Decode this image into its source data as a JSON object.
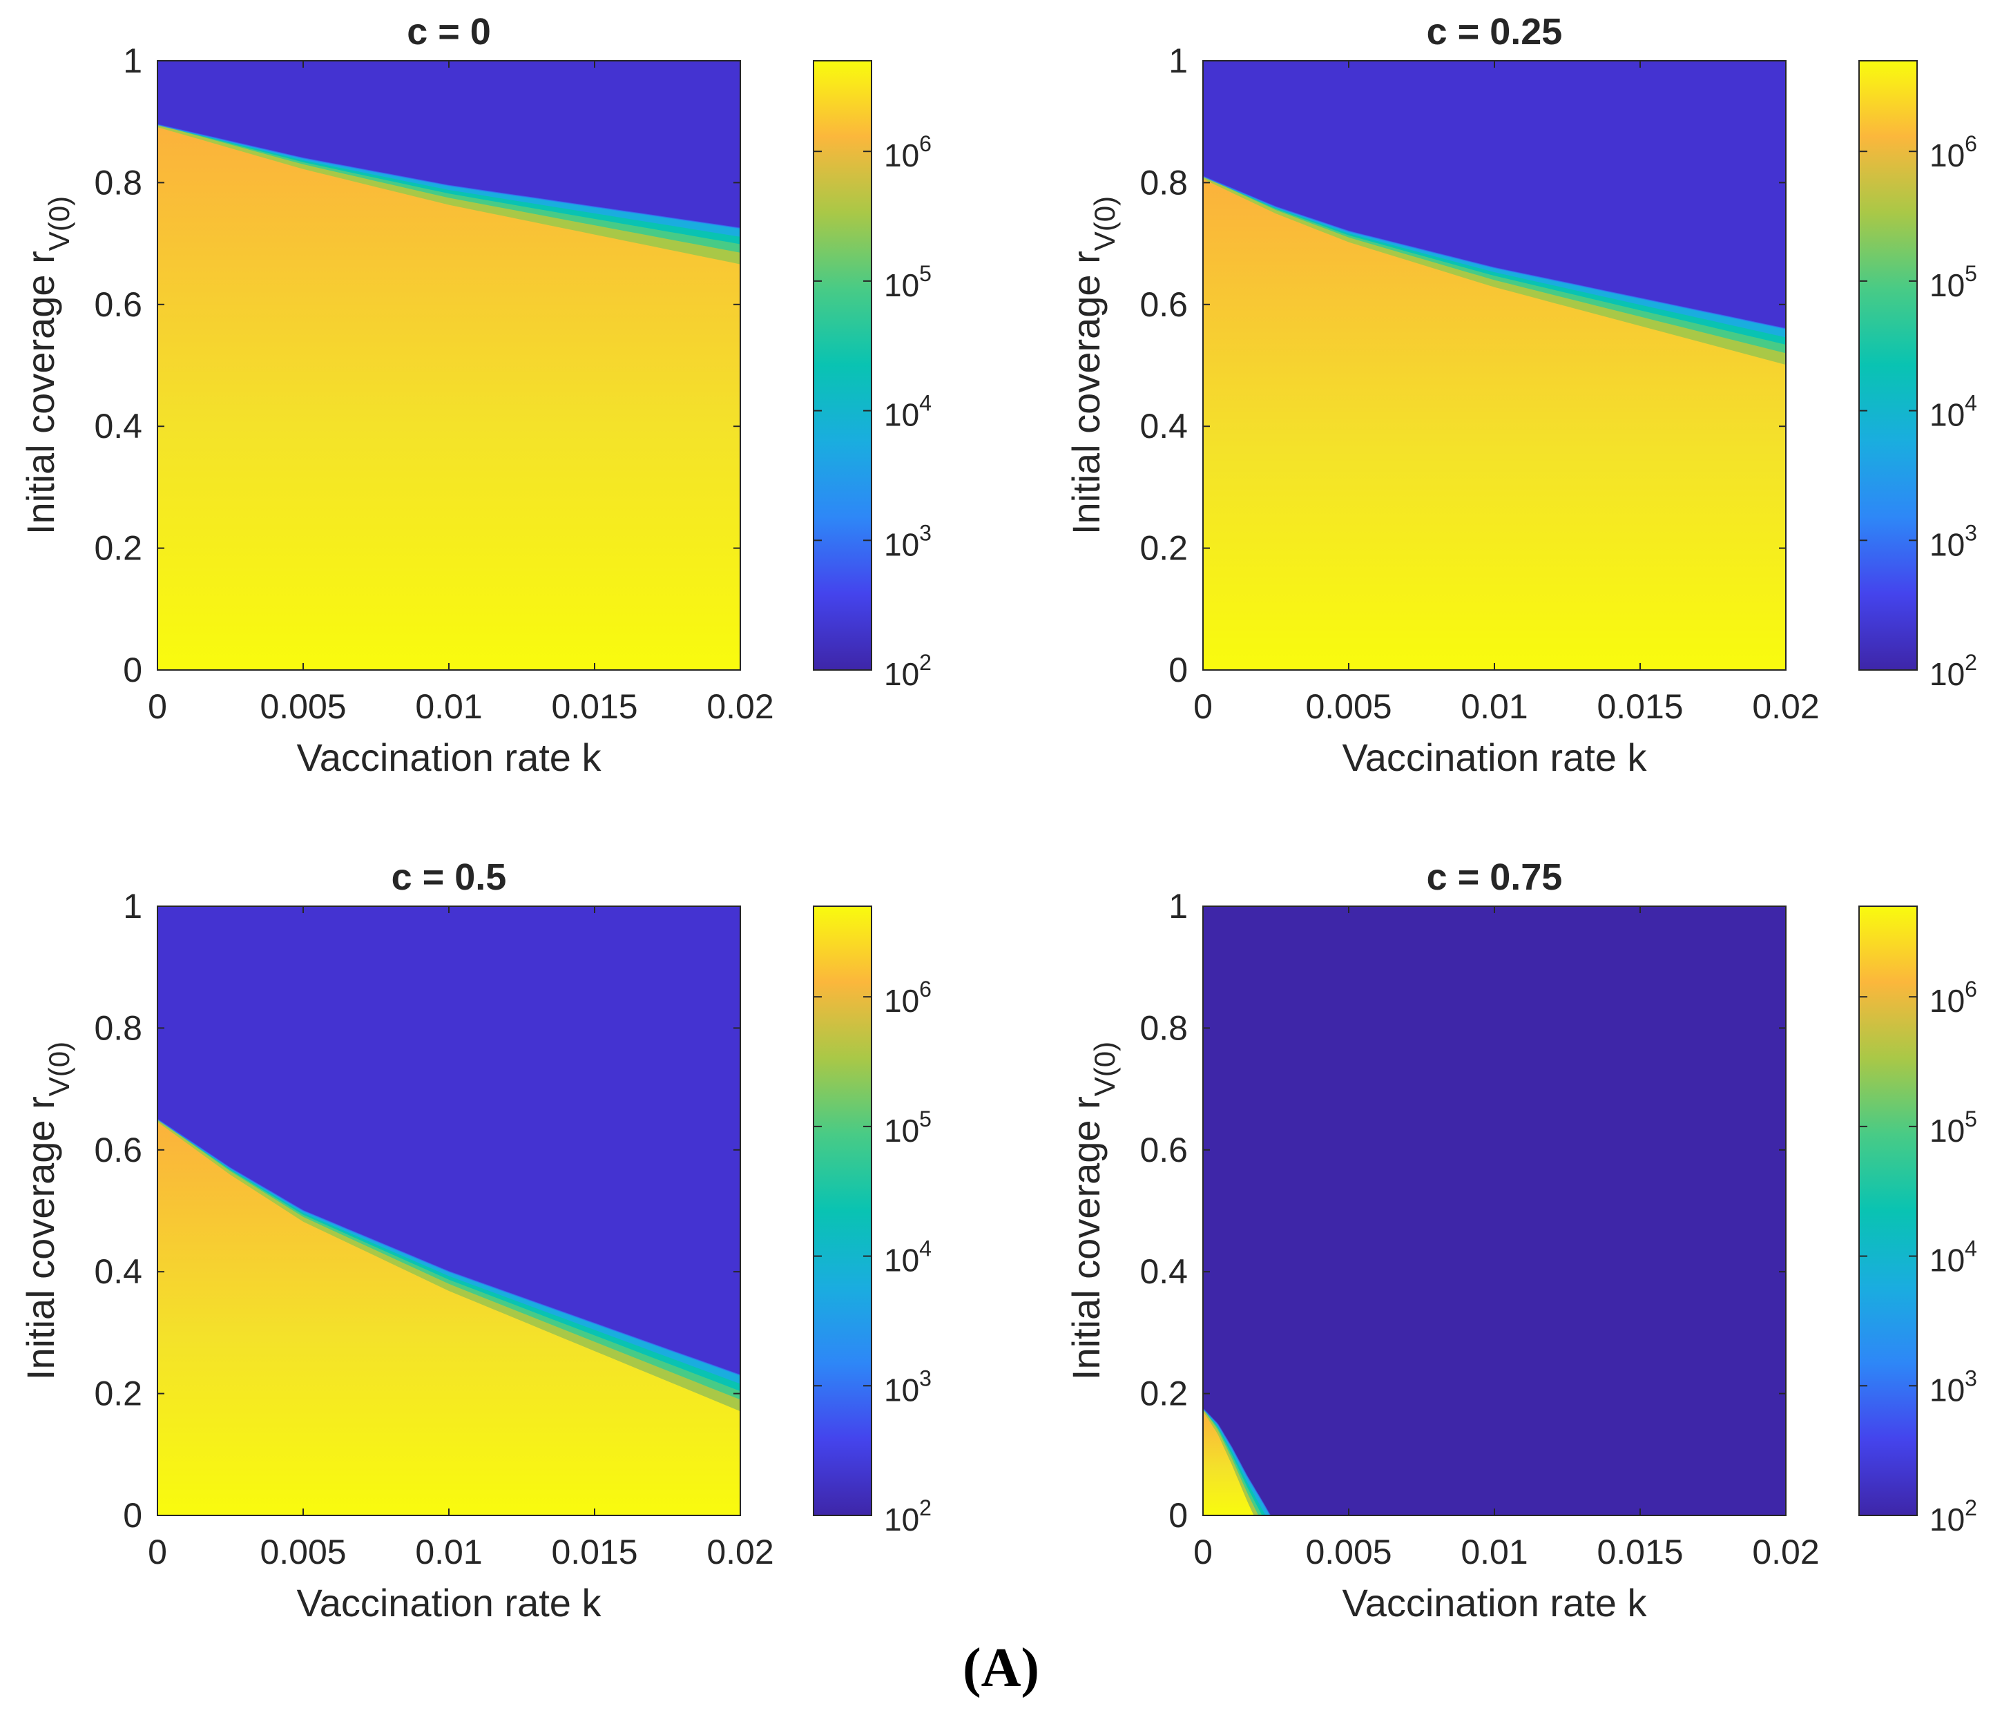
{
  "figure_caption": "(A)",
  "colors": {
    "below": "#3e26a8",
    "above": "#4433d1",
    "colormap": "parula"
  },
  "chart_data": [
    {
      "type": "heatmap",
      "title": "c = 0",
      "xlabel": "Vaccination rate k",
      "ylabel_main": "Initial coverage r",
      "ylabel_sub": "V(0)",
      "xlim": [
        0,
        0.02
      ],
      "ylim": [
        0,
        1
      ],
      "xticks": [
        "0",
        "0.005",
        "0.01",
        "0.015",
        "0.02"
      ],
      "yticks": [
        "0",
        "0.2",
        "0.4",
        "0.6",
        "0.8",
        "1"
      ],
      "colorbar": {
        "scale": "log",
        "range": [
          100,
          5000000
        ],
        "tick_exponents": [
          "2",
          "3",
          "4",
          "5",
          "6"
        ]
      },
      "threshold_k": [
        0,
        0.005,
        0.01,
        0.015,
        0.02
      ],
      "threshold_r": [
        0.895,
        0.84,
        0.795,
        0.76,
        0.725
      ],
      "top_region_value": 150
    },
    {
      "type": "heatmap",
      "title": "c = 0.25",
      "xlabel": "Vaccination rate k",
      "ylabel_main": "Initial coverage r",
      "ylabel_sub": "V(0)",
      "xlim": [
        0,
        0.02
      ],
      "ylim": [
        0,
        1
      ],
      "xticks": [
        "0",
        "0.005",
        "0.01",
        "0.015",
        "0.02"
      ],
      "yticks": [
        "0",
        "0.2",
        "0.4",
        "0.6",
        "0.8",
        "1"
      ],
      "colorbar": {
        "scale": "log",
        "range": [
          100,
          5000000
        ],
        "tick_exponents": [
          "2",
          "3",
          "4",
          "5",
          "6"
        ]
      },
      "threshold_k": [
        0,
        0.0025,
        0.005,
        0.01,
        0.015,
        0.02
      ],
      "threshold_r": [
        0.81,
        0.76,
        0.72,
        0.66,
        0.61,
        0.56
      ],
      "top_region_value": 150
    },
    {
      "type": "heatmap",
      "title": "c = 0.5",
      "xlabel": "Vaccination rate k",
      "ylabel_main": "Initial coverage r",
      "ylabel_sub": "V(0)",
      "xlim": [
        0,
        0.02
      ],
      "ylim": [
        0,
        1
      ],
      "xticks": [
        "0",
        "0.005",
        "0.01",
        "0.015",
        "0.02"
      ],
      "yticks": [
        "0",
        "0.2",
        "0.4",
        "0.6",
        "0.8",
        "1"
      ],
      "colorbar": {
        "scale": "log",
        "range": [
          100,
          5000000
        ],
        "tick_exponents": [
          "2",
          "3",
          "4",
          "5",
          "6"
        ]
      },
      "threshold_k": [
        0,
        0.0025,
        0.005,
        0.01,
        0.015,
        0.02
      ],
      "threshold_r": [
        0.65,
        0.57,
        0.5,
        0.4,
        0.315,
        0.23
      ],
      "top_region_value": 150
    },
    {
      "type": "heatmap",
      "title": "c = 0.75",
      "xlabel": "Vaccination rate k",
      "ylabel_main": "Initial coverage r",
      "ylabel_sub": "V(0)",
      "xlim": [
        0,
        0.02
      ],
      "ylim": [
        0,
        1
      ],
      "xticks": [
        "0",
        "0.005",
        "0.01",
        "0.015",
        "0.02"
      ],
      "yticks": [
        "0",
        "0.2",
        "0.4",
        "0.6",
        "0.8",
        "1"
      ],
      "colorbar": {
        "scale": "log",
        "range": [
          100,
          5000000
        ],
        "tick_exponents": [
          "2",
          "3",
          "4",
          "5",
          "6"
        ]
      },
      "threshold_k": [
        0,
        0.0005,
        0.001,
        0.0015,
        0.002,
        0.0023
      ],
      "threshold_r": [
        0.175,
        0.15,
        0.11,
        0.065,
        0.025,
        0
      ],
      "top_region_value": 100
    }
  ]
}
